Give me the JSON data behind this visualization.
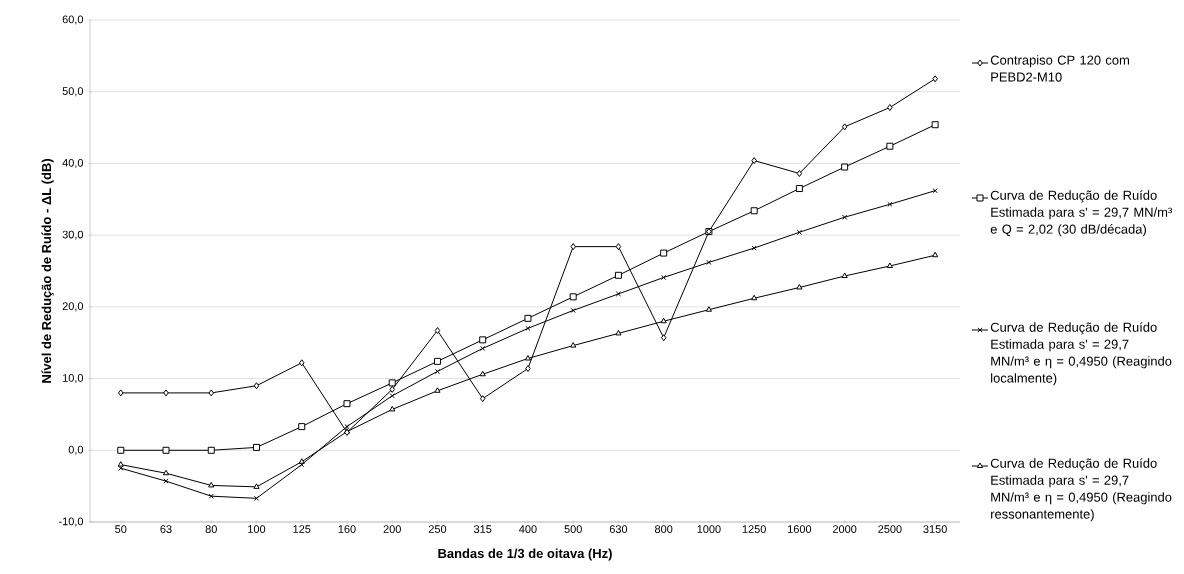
{
  "chart_data": {
    "type": "line",
    "xlabel": "Bandas de 1/3 de oitava (Hz)",
    "ylabel": "Nível de Redução de Ruído - ΔL (dB)",
    "categories": [
      "50",
      "63",
      "80",
      "100",
      "125",
      "160",
      "200",
      "250",
      "315",
      "400",
      "500",
      "630",
      "800",
      "1000",
      "1250",
      "1600",
      "2000",
      "2500",
      "3150"
    ],
    "ylim": [
      -10,
      60
    ],
    "yticks": [
      {
        "value": -10,
        "label": "-10,0"
      },
      {
        "value": 0,
        "label": "0,0"
      },
      {
        "value": 10,
        "label": "10,0"
      },
      {
        "value": 20,
        "label": "20,0"
      },
      {
        "value": 30,
        "label": "30,0"
      },
      {
        "value": 40,
        "label": "40,0"
      },
      {
        "value": 50,
        "label": "50,0"
      },
      {
        "value": 60,
        "label": "60,0"
      }
    ],
    "grid": "y",
    "legend": "right",
    "line_style": "solid",
    "series": [
      {
        "name": "Contrapiso CP 120 com PEBD2-M10",
        "color": "#000000",
        "marker": "diamond",
        "values": [
          8.0,
          8.0,
          8.0,
          9.0,
          12.2,
          2.5,
          8.5,
          16.7,
          7.2,
          11.4,
          28.4,
          28.4,
          15.7,
          30.5,
          40.4,
          38.6,
          45.1,
          47.8,
          51.8
        ]
      },
      {
        "name": "Curva de Redução de Ruído Estimada para s' = 29,7 MN/m³ e Q = 2,02 (30 dB/década)",
        "color": "#000000",
        "marker": "square",
        "values": [
          0.0,
          0.0,
          0.0,
          0.4,
          3.3,
          6.5,
          9.4,
          12.4,
          15.4,
          18.4,
          21.4,
          24.4,
          27.5,
          30.5,
          33.4,
          36.5,
          39.5,
          42.4,
          45.4
        ]
      },
      {
        "name": "Curva de Redução de Ruído Estimada para s' = 29,7 MN/m³ e η = 0,4950 (Reagindo localmente)",
        "color": "#000000",
        "marker": "cross",
        "values": [
          -2.5,
          -4.3,
          -6.4,
          -6.7,
          -2.0,
          3.3,
          7.6,
          11.0,
          14.2,
          17.0,
          19.5,
          21.8,
          24.1,
          26.2,
          28.2,
          30.4,
          32.5,
          34.3,
          36.2
        ]
      },
      {
        "name": "Curva de Redução de Ruído Estimada para s' = 29,7 MN/m³ e η = 0,4950 (Reagindo ressonantemente)",
        "color": "#000000",
        "marker": "triangle",
        "values": [
          -2.0,
          -3.2,
          -4.9,
          -5.1,
          -1.6,
          2.6,
          5.7,
          8.3,
          10.6,
          12.8,
          14.6,
          16.3,
          18.0,
          19.6,
          21.2,
          22.7,
          24.3,
          25.7,
          27.2
        ]
      }
    ]
  }
}
